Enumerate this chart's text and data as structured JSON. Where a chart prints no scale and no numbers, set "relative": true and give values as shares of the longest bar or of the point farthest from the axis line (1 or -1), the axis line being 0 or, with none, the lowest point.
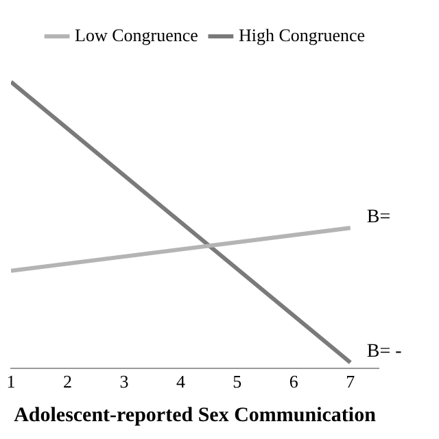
{
  "chart_data": {
    "type": "line",
    "xlabel": "Adolescent-reported Sex Communication",
    "relative": true,
    "x": [
      1,
      7
    ],
    "xlim": [
      1,
      7.5
    ],
    "xticks": [
      1,
      2,
      3,
      4,
      5,
      6,
      7
    ],
    "series": [
      {
        "name": "Low Congruence",
        "color": "#b4b4b4",
        "values": [
          0.34,
          0.49
        ]
      },
      {
        "name": "High Congruence",
        "color": "#7a7a7a",
        "values": [
          1,
          0.02
        ]
      }
    ],
    "annotations": [
      {
        "text": "B=",
        "x": 7,
        "y": 0.49
      },
      {
        "text": "B= -",
        "x": 7,
        "y": 0.02
      }
    ],
    "legend": "top right",
    "grid": false,
    "marker": "none",
    "line_style": "solid"
  }
}
